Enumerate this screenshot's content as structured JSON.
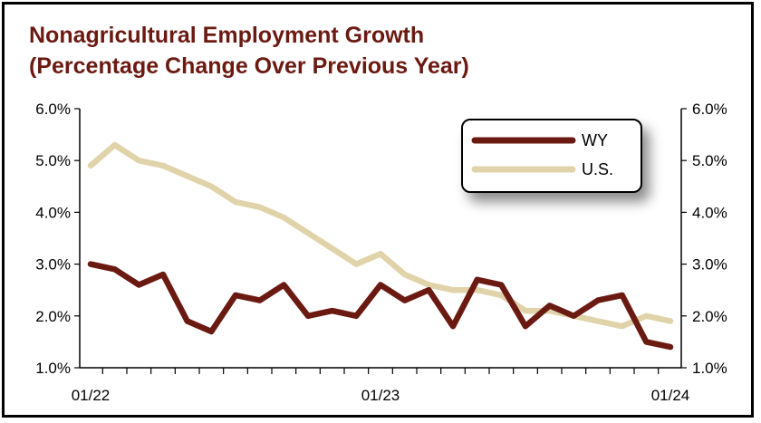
{
  "chart_data": {
    "type": "line",
    "title": "Nonagricultural Employment Growth",
    "subtitle": "(Percentage Change Over Previous Year)",
    "y_ticks": [
      "6.0%",
      "5.0%",
      "4.0%",
      "3.0%",
      "2.0%",
      "1.0%"
    ],
    "ylim": [
      1.0,
      6.0
    ],
    "x_labels": [
      "01/22",
      "01/23",
      "01/24"
    ],
    "x": [
      "01/22",
      "02/22",
      "03/22",
      "04/22",
      "05/22",
      "06/22",
      "07/22",
      "08/22",
      "09/22",
      "10/22",
      "11/22",
      "12/22",
      "01/23",
      "02/23",
      "03/23",
      "04/23",
      "05/23",
      "06/23",
      "07/23",
      "08/23",
      "09/23",
      "10/23",
      "11/23",
      "12/23",
      "01/24"
    ],
    "series": [
      {
        "name": "WY",
        "color": "#6b1a12",
        "values": [
          3.0,
          2.9,
          2.6,
          2.8,
          1.9,
          1.7,
          2.4,
          2.3,
          2.6,
          2.0,
          2.1,
          2.0,
          2.6,
          2.3,
          2.5,
          1.8,
          2.7,
          2.6,
          1.8,
          2.2,
          2.0,
          2.3,
          2.4,
          1.5,
          1.4
        ]
      },
      {
        "name": "U.S.",
        "color": "#e0d3aa",
        "values": [
          4.9,
          5.3,
          5.0,
          4.9,
          4.7,
          4.5,
          4.2,
          4.1,
          3.9,
          3.6,
          3.3,
          3.0,
          3.2,
          2.8,
          2.6,
          2.5,
          2.5,
          2.4,
          2.1,
          2.1,
          2.0,
          1.9,
          1.8,
          2.0,
          1.9
        ]
      }
    ],
    "legend_position": "top-right",
    "grid": false
  }
}
